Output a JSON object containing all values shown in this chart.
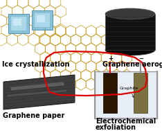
{
  "bg_color": "#ffffff",
  "labels": {
    "top_left": "Ice crystallization",
    "top_right": "Graphene aerogel",
    "bottom_left": "Graphene paper",
    "bottom_right_1": "Electrochemical",
    "bottom_right_2": "exfoliation"
  },
  "label_fontsize": 7.0,
  "graphene_color": "#c8a030",
  "red_outline_color": "#dd0000",
  "ice_color1": "#7bbcd5",
  "ice_color2": "#b8dff0",
  "aerogel_dark": "#111111",
  "aerogel_mid": "#222222",
  "paper_color": "#333333",
  "container_bg": "#e8eef5",
  "container_border": "#999999",
  "electrode1_color": "#2a1500",
  "electrode2_color": "#7a7040",
  "wire_red": "#dd0000",
  "wire_gray": "#888888"
}
